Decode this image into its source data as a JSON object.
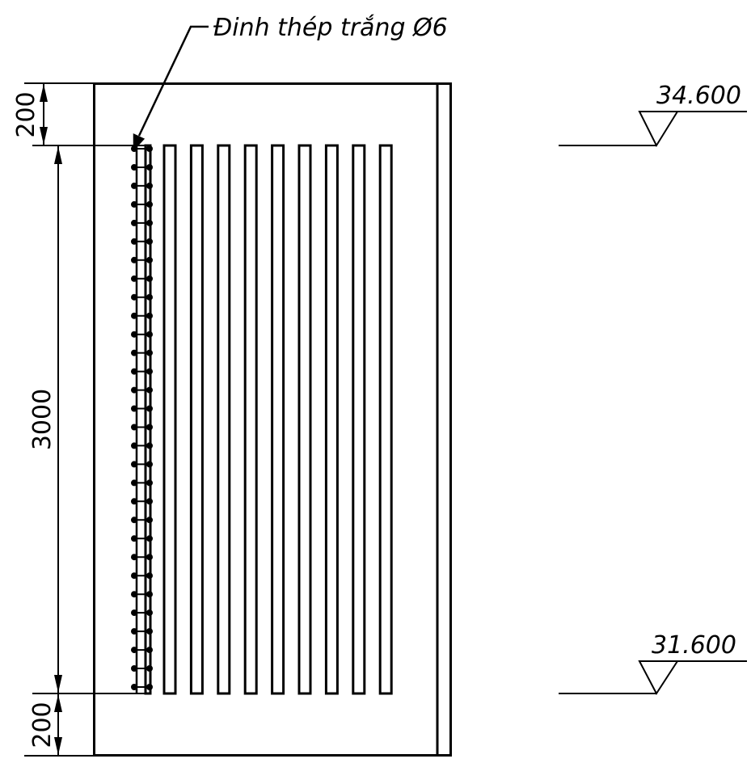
{
  "callout": {
    "label": "Đinh thép trắng Ø6"
  },
  "dimensions": {
    "top": "200",
    "middle": "3000",
    "bottom": "200"
  },
  "elevations": {
    "upper": "34.600",
    "lower": "31.600"
  },
  "detail": {
    "slat_count": 9,
    "nail_pairs_per_column": 30
  },
  "colors": {
    "line": "#000000",
    "background": "#ffffff"
  }
}
